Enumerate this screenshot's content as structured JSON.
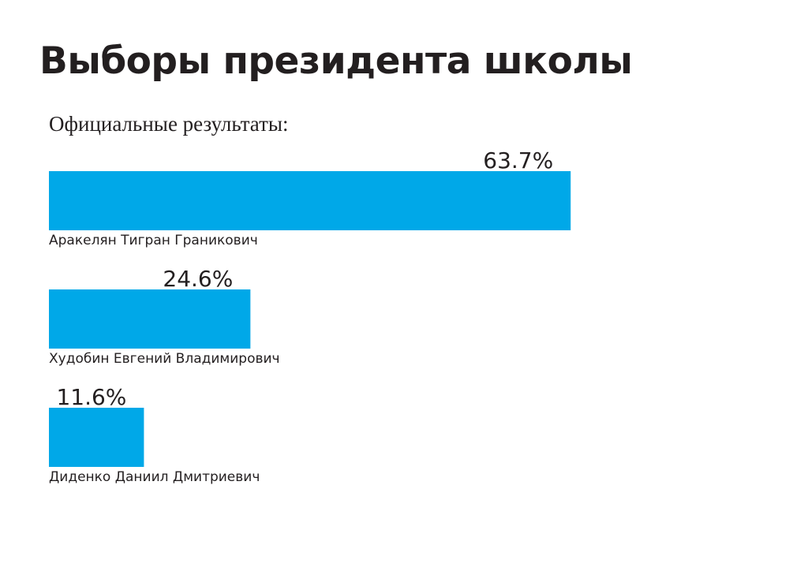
{
  "title": "Выборы президента школы",
  "subtitle": "Официальные результаты:",
  "colors": {
    "bar": "#00a8e8",
    "text": "#231f20",
    "background": "#ffffff"
  },
  "chart_data": {
    "type": "bar",
    "orientation": "horizontal",
    "title": "Выборы президента школы",
    "subtitle": "Официальные результаты:",
    "categories": [
      "Аракелян Тигран Граникович",
      "Худобин Евгений Владимирович",
      "Диденко Даниил Дмитриевич"
    ],
    "values": [
      63.7,
      24.6,
      11.6
    ],
    "value_labels": [
      "63.7%",
      "24.6%",
      "11.6%"
    ],
    "unit": "%",
    "grid": false,
    "legend": "none"
  }
}
